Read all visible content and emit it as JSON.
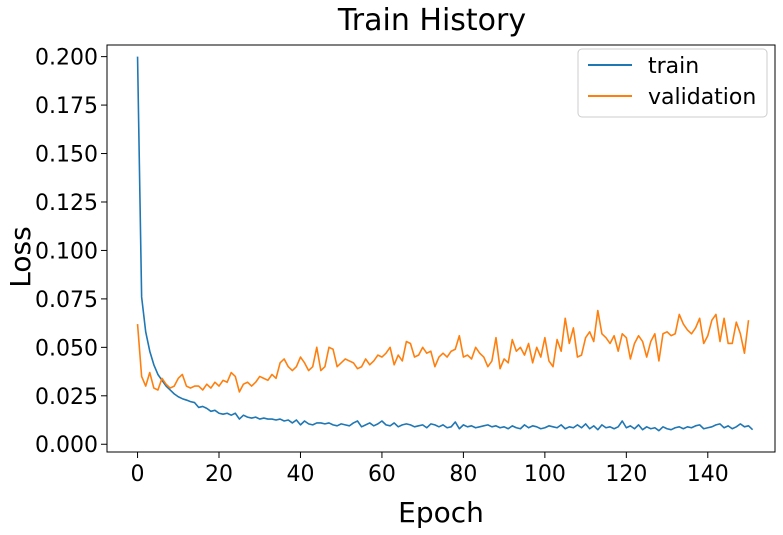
{
  "chart_data": {
    "type": "line",
    "title": "Train History",
    "xlabel": "Epoch",
    "ylabel": "Loss",
    "xlim": [
      -7.5,
      156.5
    ],
    "ylim": [
      -0.004,
      0.206
    ],
    "xticks": [
      0,
      20,
      40,
      60,
      80,
      100,
      120,
      140
    ],
    "yticks": [
      0.0,
      0.025,
      0.05,
      0.075,
      0.1,
      0.125,
      0.15,
      0.175,
      0.2
    ],
    "ytick_labels": [
      "0.000",
      "0.025",
      "0.050",
      "0.075",
      "0.100",
      "0.125",
      "0.150",
      "0.175",
      "0.200"
    ],
    "xtick_labels": [
      "0",
      "20",
      "40",
      "60",
      "80",
      "100",
      "120",
      "140"
    ],
    "legend_position": "top-right",
    "grid": false,
    "series": [
      {
        "name": "train",
        "color": "#1f77b4",
        "values": [
          0.2,
          0.076,
          0.058,
          0.048,
          0.041,
          0.036,
          0.033,
          0.03,
          0.028,
          0.026,
          0.0245,
          0.0235,
          0.0228,
          0.022,
          0.0215,
          0.019,
          0.0195,
          0.0185,
          0.017,
          0.0175,
          0.016,
          0.0155,
          0.016,
          0.015,
          0.016,
          0.013,
          0.015,
          0.014,
          0.0135,
          0.014,
          0.013,
          0.0135,
          0.013,
          0.013,
          0.0125,
          0.013,
          0.012,
          0.0125,
          0.011,
          0.0125,
          0.01,
          0.012,
          0.0105,
          0.01,
          0.011,
          0.011,
          0.0105,
          0.011,
          0.01,
          0.0095,
          0.0105,
          0.01,
          0.0095,
          0.011,
          0.012,
          0.009,
          0.01,
          0.011,
          0.0095,
          0.0105,
          0.012,
          0.01,
          0.0095,
          0.011,
          0.009,
          0.01,
          0.0105,
          0.01,
          0.009,
          0.0095,
          0.01,
          0.0085,
          0.0105,
          0.01,
          0.009,
          0.01,
          0.0085,
          0.009,
          0.0115,
          0.008,
          0.01,
          0.009,
          0.0095,
          0.0085,
          0.009,
          0.0095,
          0.01,
          0.009,
          0.0095,
          0.0085,
          0.009,
          0.008,
          0.0095,
          0.0085,
          0.008,
          0.01,
          0.0085,
          0.0095,
          0.009,
          0.008,
          0.0085,
          0.0095,
          0.009,
          0.0085,
          0.01,
          0.008,
          0.009,
          0.0085,
          0.01,
          0.0085,
          0.0105,
          0.008,
          0.0095,
          0.0075,
          0.01,
          0.0085,
          0.009,
          0.008,
          0.009,
          0.012,
          0.0085,
          0.0095,
          0.008,
          0.01,
          0.0075,
          0.009,
          0.008,
          0.0085,
          0.007,
          0.009,
          0.008,
          0.0075,
          0.0085,
          0.009,
          0.008,
          0.009,
          0.0085,
          0.0095,
          0.01,
          0.008,
          0.0085,
          0.009,
          0.01,
          0.0105,
          0.0085,
          0.0095,
          0.008,
          0.009,
          0.0105,
          0.009,
          0.0095,
          0.0075
        ]
      },
      {
        "name": "validation",
        "color": "#ff7f0e",
        "values": [
          0.062,
          0.035,
          0.03,
          0.037,
          0.029,
          0.028,
          0.034,
          0.031,
          0.029,
          0.03,
          0.034,
          0.036,
          0.03,
          0.029,
          0.03,
          0.03,
          0.028,
          0.031,
          0.029,
          0.032,
          0.03,
          0.033,
          0.032,
          0.037,
          0.035,
          0.027,
          0.031,
          0.032,
          0.03,
          0.032,
          0.035,
          0.034,
          0.033,
          0.036,
          0.034,
          0.042,
          0.044,
          0.04,
          0.038,
          0.04,
          0.045,
          0.042,
          0.038,
          0.04,
          0.05,
          0.038,
          0.04,
          0.05,
          0.049,
          0.04,
          0.042,
          0.044,
          0.043,
          0.042,
          0.039,
          0.04,
          0.044,
          0.041,
          0.043,
          0.046,
          0.045,
          0.047,
          0.05,
          0.041,
          0.046,
          0.043,
          0.053,
          0.052,
          0.045,
          0.046,
          0.05,
          0.047,
          0.048,
          0.04,
          0.045,
          0.047,
          0.045,
          0.048,
          0.049,
          0.056,
          0.045,
          0.046,
          0.044,
          0.05,
          0.047,
          0.045,
          0.04,
          0.043,
          0.055,
          0.039,
          0.044,
          0.042,
          0.054,
          0.048,
          0.05,
          0.046,
          0.052,
          0.042,
          0.05,
          0.045,
          0.055,
          0.043,
          0.04,
          0.054,
          0.048,
          0.065,
          0.052,
          0.06,
          0.045,
          0.046,
          0.055,
          0.058,
          0.053,
          0.069,
          0.057,
          0.055,
          0.052,
          0.056,
          0.048,
          0.057,
          0.055,
          0.044,
          0.052,
          0.056,
          0.053,
          0.045,
          0.053,
          0.057,
          0.043,
          0.057,
          0.058,
          0.056,
          0.057,
          0.067,
          0.062,
          0.059,
          0.057,
          0.06,
          0.065,
          0.052,
          0.056,
          0.064,
          0.067,
          0.053,
          0.065,
          0.052,
          0.052,
          0.063,
          0.057,
          0.047,
          0.064
        ]
      }
    ]
  }
}
